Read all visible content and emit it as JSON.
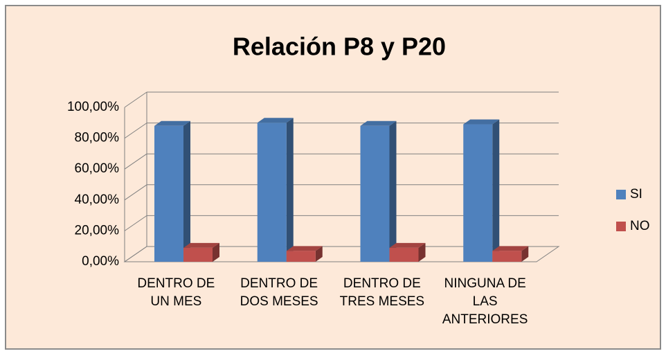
{
  "chart_data": {
    "type": "bar3d",
    "title": "Relación P8  y P20",
    "categories": [
      "DENTRO DE\nUN MES",
      "DENTRO DE\nDOS MESES",
      "DENTRO DE\nTRES MESES",
      "NINGUNA DE\nLAS\nANTERIORES"
    ],
    "series": [
      {
        "name": "SI",
        "color": "#4f81bd",
        "values": [
          88,
          90,
          88,
          89
        ]
      },
      {
        "name": "NO",
        "color": "#c0504d",
        "values": [
          9,
          7,
          9,
          7
        ]
      }
    ],
    "ylim": [
      0,
      100
    ],
    "yticks": [
      {
        "value": 0,
        "label": "0,00%"
      },
      {
        "value": 20,
        "label": "20,00%"
      },
      {
        "value": 40,
        "label": "40,00%"
      },
      {
        "value": 60,
        "label": "60,00%"
      },
      {
        "value": 80,
        "label": "80,00%"
      },
      {
        "value": 100,
        "label": "100,00%"
      }
    ],
    "grid": true,
    "legend": "right"
  }
}
